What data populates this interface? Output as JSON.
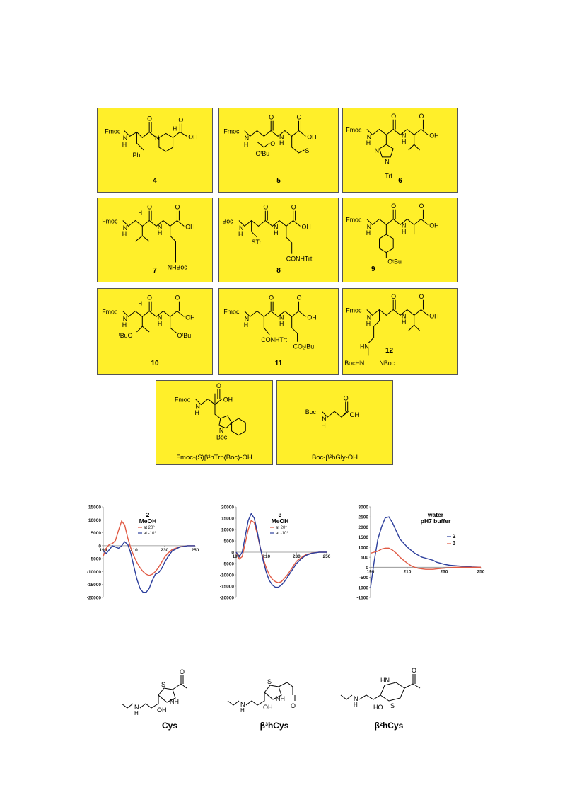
{
  "compounds": [
    {
      "id": "4",
      "label": "4",
      "texts": [
        "Fmoc",
        "N",
        "H",
        "O",
        "N",
        "OH",
        "O",
        "Ph",
        "H"
      ]
    },
    {
      "id": "5",
      "label": "5",
      "texts": [
        "Fmoc",
        "N",
        "H",
        "O",
        "N",
        "H",
        "O",
        "OH",
        "O",
        "OᵗBu",
        "S"
      ]
    },
    {
      "id": "6",
      "label": "6",
      "texts": [
        "Fmoc",
        "N",
        "H",
        "O",
        "N",
        "H",
        "O",
        "OH",
        "N",
        "N",
        "Trt"
      ]
    },
    {
      "id": "7",
      "label": "7",
      "texts": [
        "Fmoc",
        "N",
        "H",
        "H",
        "O",
        "N",
        "H",
        "O",
        "OH",
        "NHBoc"
      ]
    },
    {
      "id": "8",
      "label": "8",
      "texts": [
        "Boc",
        "N",
        "H",
        "O",
        "N",
        "H",
        "O",
        "OH",
        "STrt",
        "CONHTrt"
      ]
    },
    {
      "id": "9",
      "label": "9",
      "texts": [
        "Fmoc",
        "N",
        "H",
        "O",
        "N",
        "H",
        "O",
        "OH",
        "OᵗBu"
      ]
    },
    {
      "id": "10",
      "label": "10",
      "texts": [
        "Fmoc",
        "N",
        "H",
        "H",
        "O",
        "N",
        "H",
        "O",
        "OH",
        "ᵗBuO",
        "OᵗBu"
      ]
    },
    {
      "id": "11",
      "label": "11",
      "texts": [
        "Fmoc",
        "N",
        "H",
        "O",
        "N",
        "H",
        "O",
        "OH",
        "CONHTrt",
        "CO₂ᵗBu"
      ]
    },
    {
      "id": "12",
      "label": "12",
      "texts": [
        "Fmoc",
        "N",
        "H",
        "O",
        "N",
        "H",
        "O",
        "OH",
        "HN",
        "BocHN",
        "NBoc"
      ]
    },
    {
      "id": "trp",
      "label": "Fmoc-(S)β²hTrp(Boc)-OH",
      "texts": [
        "Fmoc",
        "N",
        "H",
        "O",
        "OH",
        "N",
        "Boc"
      ]
    },
    {
      "id": "gly",
      "label": "Boc-β²hGly-OH",
      "texts": [
        "Boc",
        "N",
        "H",
        "O",
        "OH"
      ]
    }
  ],
  "chart_data": [
    {
      "type": "line",
      "title": "2",
      "subtitle": "MeOH",
      "ylim": [
        -20000,
        15000
      ],
      "xlim": [
        190,
        250
      ],
      "x_ticks": [
        190,
        210,
        230,
        250
      ],
      "x_tick_labels": [
        "190",
        "210",
        "230",
        "250"
      ],
      "y_ticks": [
        15000,
        10000,
        5000,
        0,
        -5000,
        -10000,
        -15000,
        -20000
      ],
      "y_tick_labels": [
        "15000",
        "10000",
        "5000",
        "0",
        "-5000",
        "-10000",
        "-15000",
        "-20000"
      ],
      "legend": "top-center",
      "series": [
        {
          "name": "at 20°",
          "color": "#e05a44",
          "x": [
            190,
            192,
            194,
            196,
            198,
            200,
            202,
            204,
            206,
            208,
            210,
            212,
            214,
            216,
            218,
            220,
            222,
            224,
            226,
            228,
            230,
            232,
            235,
            240,
            245,
            250
          ],
          "y": [
            -4000,
            -1000,
            500,
            800,
            2000,
            6000,
            9500,
            8000,
            3000,
            -1000,
            -4000,
            -6500,
            -8500,
            -10000,
            -11000,
            -11500,
            -11000,
            -10000,
            -8500,
            -6500,
            -4500,
            -3000,
            -1500,
            -400,
            0,
            0
          ]
        },
        {
          "name": "at -10°",
          "color": "#2c3e9c",
          "x": [
            190,
            192,
            194,
            196,
            198,
            200,
            202,
            204,
            206,
            208,
            210,
            212,
            214,
            216,
            218,
            220,
            222,
            224,
            226,
            228,
            230,
            232,
            235,
            240,
            245,
            250
          ],
          "y": [
            -2000,
            -3000,
            -1500,
            0,
            -500,
            -1000,
            0,
            1500,
            500,
            -3000,
            -8000,
            -13000,
            -16500,
            -18000,
            -18000,
            -16500,
            -13500,
            -11000,
            -10500,
            -9000,
            -6500,
            -4500,
            -2000,
            -500,
            0,
            0
          ]
        }
      ]
    },
    {
      "type": "line",
      "title": "3",
      "subtitle": "MeOH",
      "ylim": [
        -20000,
        20000
      ],
      "xlim": [
        190,
        250
      ],
      "x_ticks": [
        190,
        210,
        230,
        250
      ],
      "x_tick_labels": [
        "190",
        "210",
        "230",
        "250"
      ],
      "y_ticks": [
        20000,
        15000,
        10000,
        5000,
        0,
        -5000,
        -10000,
        -15000,
        -20000
      ],
      "y_tick_labels": [
        "20000",
        "15000",
        "10000",
        "5000",
        "0",
        "-5000",
        "-10000",
        "-15000",
        "-20000"
      ],
      "legend": "top-center",
      "series": [
        {
          "name": "at 20°",
          "color": "#e05a44",
          "x": [
            190,
            192,
            194,
            196,
            198,
            200,
            202,
            204,
            206,
            208,
            210,
            212,
            214,
            216,
            218,
            220,
            222,
            224,
            226,
            228,
            230,
            233,
            236,
            240,
            245,
            250
          ],
          "y": [
            0,
            -3000,
            -2000,
            4000,
            10000,
            14000,
            13000,
            8000,
            2000,
            -3000,
            -7000,
            -10000,
            -12000,
            -13000,
            -13500,
            -13000,
            -11500,
            -10000,
            -8000,
            -6000,
            -4000,
            -2500,
            -1200,
            -400,
            0,
            0
          ]
        },
        {
          "name": "at -10°",
          "color": "#2c3e9c",
          "x": [
            190,
            192,
            194,
            196,
            198,
            200,
            202,
            204,
            206,
            208,
            210,
            212,
            214,
            216,
            218,
            220,
            222,
            224,
            226,
            228,
            230,
            233,
            236,
            240,
            245,
            250
          ],
          "y": [
            0,
            -2000,
            0,
            7000,
            14000,
            17000,
            15000,
            9000,
            2000,
            -4000,
            -9000,
            -12500,
            -14500,
            -15500,
            -15500,
            -14500,
            -13000,
            -11000,
            -9000,
            -7000,
            -5000,
            -3000,
            -1500,
            -500,
            0,
            0
          ]
        }
      ]
    },
    {
      "type": "line",
      "title": "water",
      "subtitle": "pH7 buffer",
      "ylim": [
        -1500,
        3000
      ],
      "xlim": [
        190,
        250
      ],
      "x_ticks": [
        190,
        210,
        230,
        250
      ],
      "x_tick_labels": [
        "190",
        "210",
        "230",
        "250"
      ],
      "y_ticks": [
        3000,
        2500,
        2000,
        1500,
        1000,
        500,
        0,
        -500,
        -1000,
        -1500
      ],
      "y_tick_labels": [
        "3000",
        "2500",
        "2000",
        "1500",
        "1000",
        "500",
        "0",
        "-500",
        "-1000",
        "-1500"
      ],
      "legend": "right",
      "series": [
        {
          "name": "2",
          "color": "#2c3e9c",
          "x": [
            190,
            192,
            194,
            196,
            198,
            200,
            202,
            204,
            206,
            208,
            210,
            212,
            214,
            216,
            218,
            220,
            222,
            224,
            226,
            228,
            230,
            233,
            236,
            240,
            245,
            250
          ],
          "y": [
            -1000,
            300,
            1400,
            2000,
            2450,
            2500,
            2200,
            1800,
            1400,
            1200,
            1000,
            850,
            700,
            600,
            500,
            450,
            400,
            350,
            250,
            200,
            150,
            100,
            80,
            50,
            20,
            0
          ]
        },
        {
          "name": "3",
          "color": "#e05a44",
          "x": [
            190,
            192,
            194,
            196,
            198,
            200,
            202,
            204,
            206,
            208,
            210,
            212,
            214,
            216,
            218,
            220,
            222,
            224,
            226,
            228,
            230,
            233,
            236,
            240,
            245,
            250
          ],
          "y": [
            700,
            750,
            800,
            900,
            950,
            950,
            850,
            700,
            500,
            350,
            200,
            80,
            0,
            -50,
            -80,
            -100,
            -100,
            -100,
            -80,
            -60,
            -40,
            -20,
            0,
            0,
            0,
            0
          ]
        }
      ]
    }
  ],
  "cysteines": [
    {
      "id": "cys",
      "label": "Cys",
      "texts": [
        "S",
        "NH",
        "OH",
        "N",
        "H",
        "O"
      ]
    },
    {
      "id": "b3hcys",
      "label": "β³hCys",
      "texts": [
        "S",
        "NH",
        "OH",
        "N",
        "H",
        "O"
      ]
    },
    {
      "id": "b2hcys",
      "label": "β²hCys",
      "texts": [
        "HN",
        "S",
        "HO",
        "N",
        "H",
        "O"
      ]
    }
  ]
}
